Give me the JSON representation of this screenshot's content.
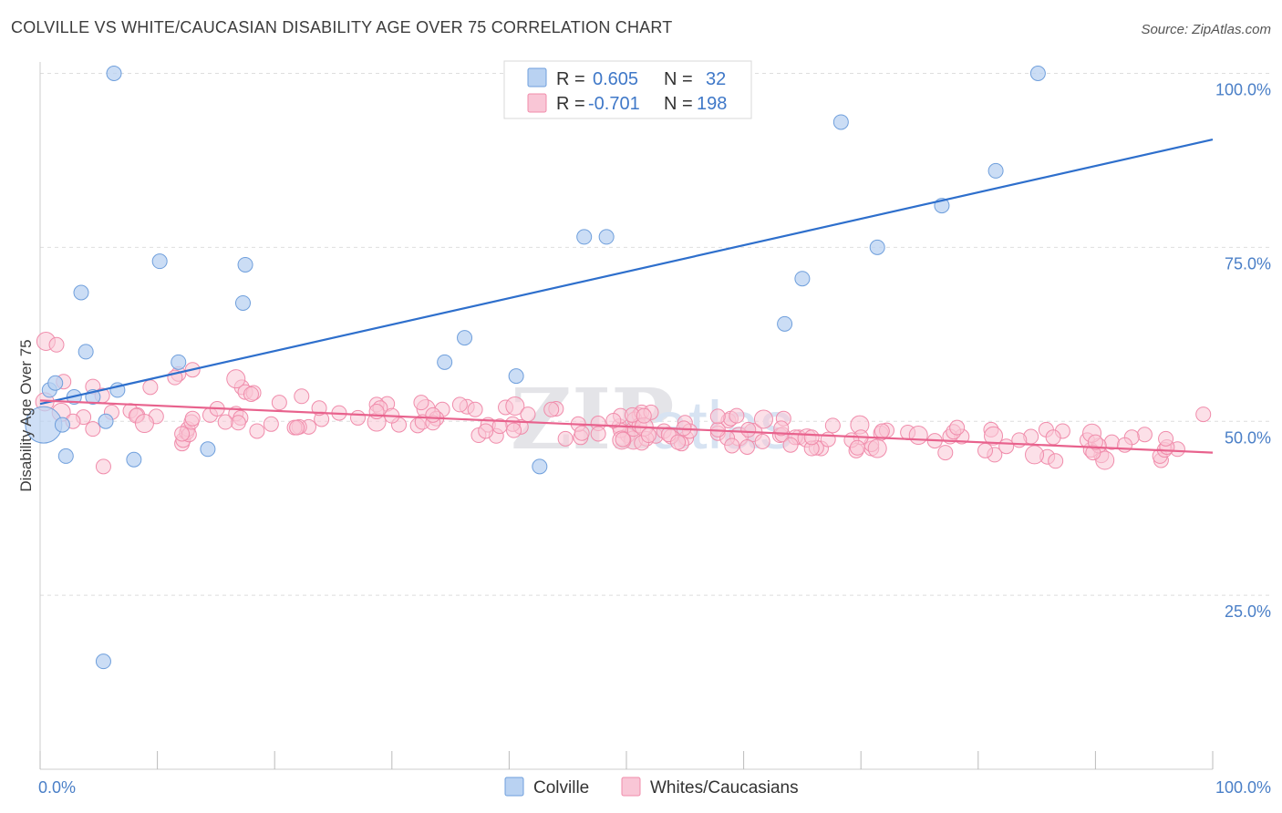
{
  "title": "COLVILLE VS WHITE/CAUCASIAN DISABILITY AGE OVER 75 CORRELATION CHART",
  "source": "Source: ZipAtlas.com",
  "watermark": {
    "zip": "ZIP",
    "atlas": "atlas"
  },
  "chart_data": {
    "type": "scatter",
    "title": "COLVILLE VS WHITE/CAUCASIAN DISABILITY AGE OVER 75 CORRELATION CHART",
    "xlabel": "",
    "ylabel": "Disability Age Over 75",
    "xlim": [
      0,
      100
    ],
    "ylim": [
      0,
      105
    ],
    "x_tick_labels": [
      "0.0%",
      "100.0%"
    ],
    "y_ticks": [
      25,
      50,
      75,
      100
    ],
    "y_tick_labels": [
      "25.0%",
      "50.0%",
      "75.0%",
      "100.0%"
    ],
    "grid": true,
    "legend_position": "top-center",
    "series": [
      {
        "name": "Colville",
        "color": "#6f9fdc",
        "fill": "#b9d2f2",
        "line_color": "#2e6fcc",
        "R": "0.605",
        "N": "32",
        "trend": {
          "x0": 0,
          "y0": 52.5,
          "x1": 100,
          "y1": 90.5
        },
        "points": [
          [
            0.3,
            49.5
          ],
          [
            0.8,
            54.5
          ],
          [
            1.3,
            55.5
          ],
          [
            1.9,
            49.5
          ],
          [
            2.2,
            45.0
          ],
          [
            2.9,
            53.5
          ],
          [
            3.5,
            68.5
          ],
          [
            3.9,
            60.0
          ],
          [
            4.5,
            53.5
          ],
          [
            5.4,
            15.5
          ],
          [
            5.6,
            50.0
          ],
          [
            6.3,
            100.0
          ],
          [
            6.6,
            54.5
          ],
          [
            8.0,
            44.5
          ],
          [
            10.2,
            73.0
          ],
          [
            11.8,
            58.5
          ],
          [
            14.3,
            46.0
          ],
          [
            17.3,
            67.0
          ],
          [
            17.5,
            72.5
          ],
          [
            34.5,
            58.5
          ],
          [
            36.2,
            62.0
          ],
          [
            40.6,
            56.5
          ],
          [
            42.6,
            43.5
          ],
          [
            46.4,
            76.5
          ],
          [
            48.3,
            76.5
          ],
          [
            63.5,
            64.0
          ],
          [
            65.0,
            70.5
          ],
          [
            68.3,
            93.0
          ],
          [
            71.4,
            75.0
          ],
          [
            76.9,
            81.0
          ],
          [
            81.5,
            86.0
          ],
          [
            85.1,
            100.0
          ]
        ],
        "large_point_index": 0
      },
      {
        "name": "Whites/Caucasians",
        "color": "#f08cab",
        "fill": "#f9c6d6",
        "line_color": "#e8628d",
        "R": "-0.701",
        "N": "198",
        "trend": {
          "x0": 0,
          "y0": 53.0,
          "x1": 100,
          "y1": 45.5
        },
        "points": []
      }
    ]
  },
  "legend": {
    "row1": {
      "r_label": "R =",
      "r_value": "0.605",
      "n_label": "N =",
      "n_value": "32"
    },
    "row2": {
      "r_label": "R =",
      "r_value": "-0.701",
      "n_label": "N =",
      "n_value": "198"
    }
  },
  "bottom_legend": {
    "item1": "Colville",
    "item2": "Whites/Caucasians"
  }
}
